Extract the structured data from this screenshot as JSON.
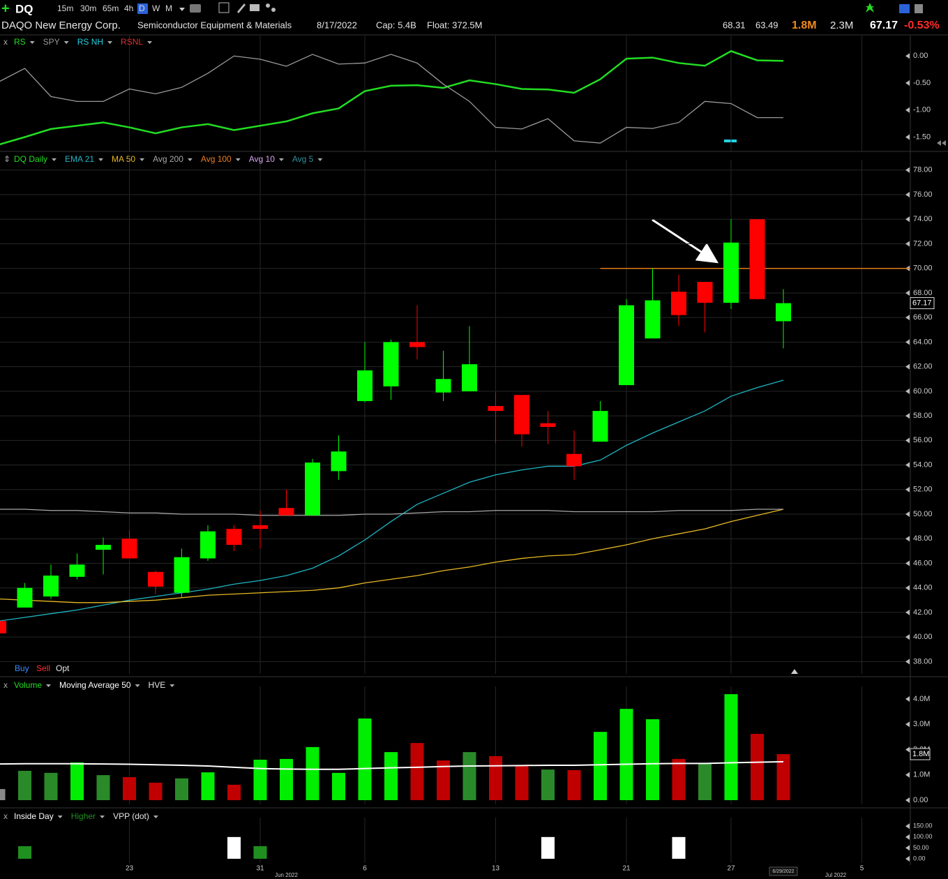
{
  "toolbar": {
    "symbol": "DQ",
    "timeframes": [
      "15m",
      "30m",
      "65m",
      "4h",
      "D",
      "W",
      "M"
    ]
  },
  "info": {
    "name": "DAQO New Energy Corp.",
    "industry": "Semiconductor Equipment & Materials",
    "date": "8/17/2022",
    "cap": "Cap: 5.4B",
    "float": "Float: 372.5M",
    "high": "68.31",
    "low": "63.49",
    "volume": "1.8M",
    "avg_volume": "2.3M",
    "last": "67.17",
    "change": "-0.53%"
  },
  "order_bar": [
    "Buy",
    "Sell",
    "Opt"
  ],
  "chart_data": [
    {
      "type": "line",
      "ylim": [
        -1.7,
        0.3
      ],
      "yticks": [
        {
          "value": 0,
          "label": "0.00"
        },
        {
          "value": -0.5,
          "label": "-0.50"
        },
        {
          "value": -1,
          "label": "-1.00"
        },
        {
          "value": -1.5,
          "label": "-1.50"
        }
      ],
      "grid": false,
      "series": [
        {
          "name": "RS",
          "color": "#22dd22",
          "values": [
            -1.64,
            -1.5,
            -1.35,
            -1.29,
            -1.23,
            -1.32,
            -1.43,
            -1.32,
            -1.26,
            -1.37,
            -1.29,
            -1.21,
            -1.06,
            -0.97,
            -0.65,
            -0.55,
            -0.54,
            -0.59,
            -0.45,
            -0.52,
            -0.61,
            -0.62,
            -0.68,
            -0.43,
            -0.05,
            -0.03,
            -0.13,
            -0.18,
            0.09,
            -0.08,
            -0.09,
            null,
            null,
            null
          ]
        },
        {
          "name": "SPY",
          "color": "#9a9a9a",
          "values": [
            -0.48,
            -0.23,
            -0.75,
            -0.84,
            -0.84,
            -0.61,
            -0.7,
            -0.58,
            -0.32,
            0,
            -0.06,
            -0.19,
            0.03,
            -0.15,
            -0.13,
            0.03,
            -0.13,
            -0.52,
            -0.84,
            -1.32,
            -1.35,
            -1.16,
            -1.57,
            -1.61,
            -1.32,
            -1.34,
            -1.23,
            -0.84,
            -0.88,
            -1.14,
            -1.14,
            null,
            null,
            null
          ]
        }
      ],
      "indicators": [
        {
          "name": "RS NH",
          "color": "#22d3e6"
        },
        {
          "name": "RSNL",
          "color": "#e03030"
        }
      ]
    },
    {
      "type": "candlestick",
      "label": "DQ Daily",
      "label_color": "#22dd22",
      "categories": [
        null,
        null,
        null,
        null,
        null,
        "23",
        null,
        null,
        null,
        null,
        "31",
        "Jun 2022",
        null,
        null,
        "6",
        null,
        null,
        null,
        null,
        "13",
        null,
        null,
        null,
        null,
        "21",
        null,
        null,
        null,
        "27",
        null,
        "6/29/2022",
        null,
        "Jul 2022",
        "5"
      ],
      "open": [
        41.3,
        42.4,
        43.3,
        44.9,
        47.1,
        48.0,
        45.3,
        43.6,
        46.4,
        48.8,
        49.1,
        50.5,
        49.9,
        53.5,
        59.2,
        60.4,
        64.0,
        59.9,
        60.0,
        58.8,
        59.7,
        57.4,
        54.9,
        55.9,
        60.5,
        64.3,
        68.1,
        68.9,
        67.2,
        74.0,
        65.7,
        null,
        null,
        null
      ],
      "high": [
        41.3,
        44.4,
        45.9,
        46.8,
        48.1,
        48.7,
        45.4,
        47.2,
        49.1,
        49.1,
        50.3,
        52.0,
        54.5,
        56.4,
        64.0,
        64.2,
        67.0,
        63.3,
        65.3,
        59.9,
        59.7,
        58.4,
        56.8,
        59.2,
        67.5,
        70.0,
        69.5,
        68.9,
        74.0,
        74.0,
        68.31,
        null,
        null,
        null
      ],
      "low": [
        40.3,
        42.4,
        43.1,
        44.7,
        45.1,
        46.4,
        43.5,
        43.2,
        46.2,
        47.0,
        47.2,
        49.9,
        49.9,
        52.8,
        59.1,
        59.3,
        62.6,
        59.2,
        60.0,
        55.8,
        55.5,
        55.7,
        52.8,
        55.9,
        60.5,
        64.3,
        65.3,
        64.8,
        66.7,
        67.5,
        63.49,
        null,
        null,
        null
      ],
      "close": [
        40.3,
        44.0,
        45.0,
        45.9,
        47.5,
        46.4,
        44.1,
        46.5,
        48.6,
        47.5,
        48.8,
        49.9,
        54.2,
        55.1,
        61.7,
        64.0,
        63.6,
        61.0,
        62.2,
        58.4,
        56.5,
        57.1,
        53.9,
        58.4,
        67.0,
        67.4,
        66.2,
        67.2,
        72.1,
        67.5,
        67.17,
        null,
        null,
        null
      ],
      "up_color": "#00ff00",
      "down_color": "#ff0000",
      "ylim": [
        37,
        78.5
      ],
      "yticks": [
        {
          "value": 38,
          "label": "38.00"
        },
        {
          "value": 40,
          "label": "40.00"
        },
        {
          "value": 42,
          "label": "42.00"
        },
        {
          "value": 44,
          "label": "44.00"
        },
        {
          "value": 46,
          "label": "46.00"
        },
        {
          "value": 48,
          "label": "48.00"
        },
        {
          "value": 50,
          "label": "50.00"
        },
        {
          "value": 52,
          "label": "52.00"
        },
        {
          "value": 54,
          "label": "54.00"
        },
        {
          "value": 56,
          "label": "56.00"
        },
        {
          "value": 58,
          "label": "58.00"
        },
        {
          "value": 60,
          "label": "60.00"
        },
        {
          "value": 62,
          "label": "62.00"
        },
        {
          "value": 64,
          "label": "64.00"
        },
        {
          "value": 66,
          "label": "66.00"
        },
        {
          "value": 68,
          "label": "68.00"
        },
        {
          "value": 70,
          "label": "70.00"
        },
        {
          "value": 72,
          "label": "72.00"
        },
        {
          "value": 74,
          "label": "74.00"
        },
        {
          "value": 76,
          "label": "76.00"
        },
        {
          "value": 78,
          "label": "78.00"
        }
      ],
      "grid": true,
      "hline": {
        "value": 70,
        "color": "#e07b1a"
      },
      "series": [
        {
          "name": "EMA 21",
          "type": "line",
          "color": "#1fb5c4",
          "values": [
            41.3,
            41.6,
            41.9,
            42.2,
            42.6,
            43.0,
            43.3,
            43.6,
            43.9,
            44.3,
            44.6,
            45.0,
            45.6,
            46.6,
            47.9,
            49.4,
            50.8,
            51.7,
            52.6,
            53.2,
            53.6,
            53.9,
            53.9,
            54.4,
            55.6,
            56.6,
            57.5,
            58.4,
            59.6,
            60.3,
            60.9,
            null,
            null,
            null
          ]
        },
        {
          "name": "MA 50",
          "type": "line",
          "color": "#e8b923",
          "values": [
            43.1,
            43.0,
            42.9,
            42.8,
            42.8,
            42.9,
            43.0,
            43.2,
            43.4,
            43.5,
            43.6,
            43.7,
            43.8,
            44.0,
            44.4,
            44.7,
            45.0,
            45.4,
            45.7,
            46.1,
            46.4,
            46.6,
            46.7,
            47.1,
            47.5,
            48.0,
            48.4,
            48.8,
            49.4,
            49.9,
            50.4,
            null,
            null,
            null
          ]
        },
        {
          "name": "Avg 200",
          "type": "line",
          "color": "#a8a8a8",
          "values": [
            50.4,
            50.4,
            50.3,
            50.3,
            50.2,
            50.1,
            50.1,
            50.0,
            50.0,
            50.0,
            49.9,
            49.9,
            49.9,
            49.9,
            50.0,
            50.0,
            50.1,
            50.2,
            50.2,
            50.3,
            50.3,
            50.3,
            50.2,
            50.2,
            50.2,
            50.2,
            50.3,
            50.3,
            50.3,
            50.4,
            50.4,
            null,
            null,
            null
          ]
        }
      ],
      "indicators": [
        {
          "name": "Avg 100",
          "color": "#f07d1e"
        },
        {
          "name": "Avg 10",
          "color": "#d9a6f0"
        },
        {
          "name": "Avg 5",
          "color": "#2f8f9a"
        }
      ]
    },
    {
      "type": "bar",
      "ylim": [
        0,
        4.33
      ],
      "yticks": [
        {
          "value": 0,
          "label": "0.00"
        },
        {
          "value": 1,
          "label": "1.0M"
        },
        {
          "value": 2,
          "label": "2.0M"
        },
        {
          "value": 3,
          "label": "3.0M"
        },
        {
          "value": 4,
          "label": "4.0M"
        }
      ],
      "grid": false,
      "series": [
        {
          "name": "Volume",
          "color": "#22dd22",
          "values": [
            0.44,
            1.16,
            1.08,
            1.49,
            0.99,
            0.91,
            0.69,
            0.86,
            1.1,
            0.61,
            1.6,
            1.63,
            2.1,
            1.08,
            3.23,
            1.9,
            2.26,
            1.57,
            1.9,
            1.74,
            1.35,
            1.21,
            1.19,
            2.7,
            3.61,
            3.2,
            1.63,
            1.46,
            4.19,
            2.62,
            1.82,
            null,
            null,
            null
          ],
          "colors": [
            "#888888",
            "#2a8a2a",
            "#2a8a2a",
            "#00ee00",
            "#2a8a2a",
            "#c00000",
            "#c00000",
            "#2a8a2a",
            "#00ee00",
            "#c00000",
            "#00ee00",
            "#00ee00",
            "#00ee00",
            "#00ee00",
            "#00ee00",
            "#00ee00",
            "#c00000",
            "#c00000",
            "#2a8a2a",
            "#c00000",
            "#c00000",
            "#2a8a2a",
            "#c00000",
            "#00ee00",
            "#00ee00",
            "#00ee00",
            "#c00000",
            "#2a8a2a",
            "#00ee00",
            "#c00000",
            "#c00000",
            null,
            null,
            null
          ]
        },
        {
          "name": "Moving Average 50",
          "type": "line",
          "color": "#ffffff",
          "values": [
            1.43,
            1.44,
            1.44,
            1.44,
            1.43,
            1.42,
            1.4,
            1.38,
            1.35,
            1.3,
            1.25,
            1.23,
            1.22,
            1.22,
            1.25,
            1.28,
            1.3,
            1.33,
            1.35,
            1.36,
            1.37,
            1.38,
            1.38,
            1.4,
            1.42,
            1.44,
            1.45,
            1.45,
            1.48,
            1.5,
            1.52,
            null,
            null,
            null
          ]
        }
      ],
      "indicators": [
        {
          "name": "HVE",
          "color": "#e6e6e6"
        }
      ]
    },
    {
      "type": "bar",
      "ylim": [
        0,
        170
      ],
      "yticks": [
        {
          "value": 0,
          "label": "0.00"
        },
        {
          "value": 50,
          "label": "50.00"
        },
        {
          "value": 100,
          "label": "100.00"
        },
        {
          "value": 150,
          "label": "150.00"
        }
      ],
      "grid": false,
      "series": [
        {
          "name": "Inside Day",
          "color": "#ffffff",
          "values": [
            null,
            null,
            null,
            null,
            null,
            null,
            null,
            null,
            null,
            100,
            null,
            null,
            null,
            null,
            null,
            null,
            null,
            null,
            null,
            null,
            null,
            100,
            null,
            null,
            null,
            null,
            100,
            null,
            null,
            null,
            null,
            null,
            null,
            null
          ]
        },
        {
          "name": "Higher",
          "color": "#1f8f1f",
          "values": [
            null,
            58,
            null,
            null,
            null,
            null,
            null,
            null,
            null,
            null,
            58,
            null,
            null,
            null,
            null,
            null,
            null,
            null,
            null,
            null,
            null,
            null,
            null,
            null,
            null,
            null,
            null,
            null,
            null,
            null,
            null,
            null,
            null,
            null
          ]
        }
      ],
      "indicators": [
        {
          "name": "VPP (dot)",
          "color": "#e6e6e6"
        }
      ]
    }
  ]
}
